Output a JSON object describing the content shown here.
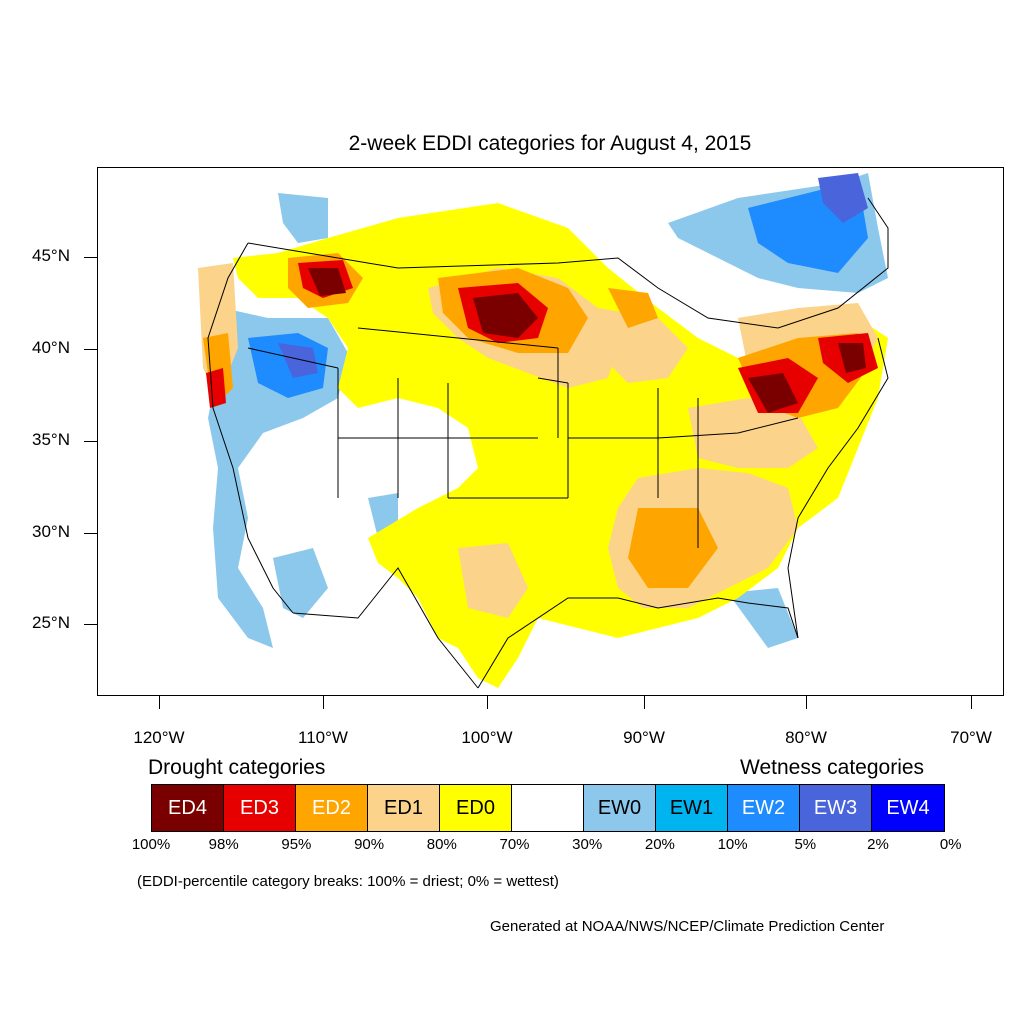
{
  "title": "2-week EDDI categories for August 4, 2015",
  "y_axis_labels": [
    "45°N",
    "40°N",
    "35°N",
    "30°N",
    "25°N"
  ],
  "x_axis_labels": [
    "120°W",
    "110°W",
    "100°W",
    "90°W",
    "80°W",
    "70°W"
  ],
  "legend": {
    "drought_heading": "Drought categories",
    "wetness_heading": "Wetness categories",
    "categories": [
      {
        "label": "ED4",
        "color": "#7a0000",
        "text_color": "#ffffff"
      },
      {
        "label": "ED3",
        "color": "#e60000",
        "text_color": "#ffffff"
      },
      {
        "label": "ED2",
        "color": "#ffa500",
        "text_color": "#ffffff"
      },
      {
        "label": "ED1",
        "color": "#fcd38a",
        "text_color": "#000000"
      },
      {
        "label": "ED0",
        "color": "#ffff00",
        "text_color": "#000000"
      },
      {
        "label": "",
        "color": "#ffffff",
        "text_color": "#000000"
      },
      {
        "label": "EW0",
        "color": "#8cc8ec",
        "text_color": "#000000"
      },
      {
        "label": "EW1",
        "color": "#00b4f0",
        "text_color": "#000000"
      },
      {
        "label": "EW2",
        "color": "#1e8cff",
        "text_color": "#ffffff"
      },
      {
        "label": "EW3",
        "color": "#4a64dc",
        "text_color": "#ffffff"
      },
      {
        "label": "EW4",
        "color": "#0000ff",
        "text_color": "#ffffff"
      }
    ],
    "breaks": [
      "100%",
      "98%",
      "95%",
      "90%",
      "80%",
      "70%",
      "30%",
      "20%",
      "10%",
      "5%",
      "2%",
      "0%"
    ]
  },
  "note": "(EDDI-percentile category breaks: 100% = driest; 0% = wettest)",
  "credit": "Generated at NOAA/NWS/NCEP/Climate Prediction Center"
}
